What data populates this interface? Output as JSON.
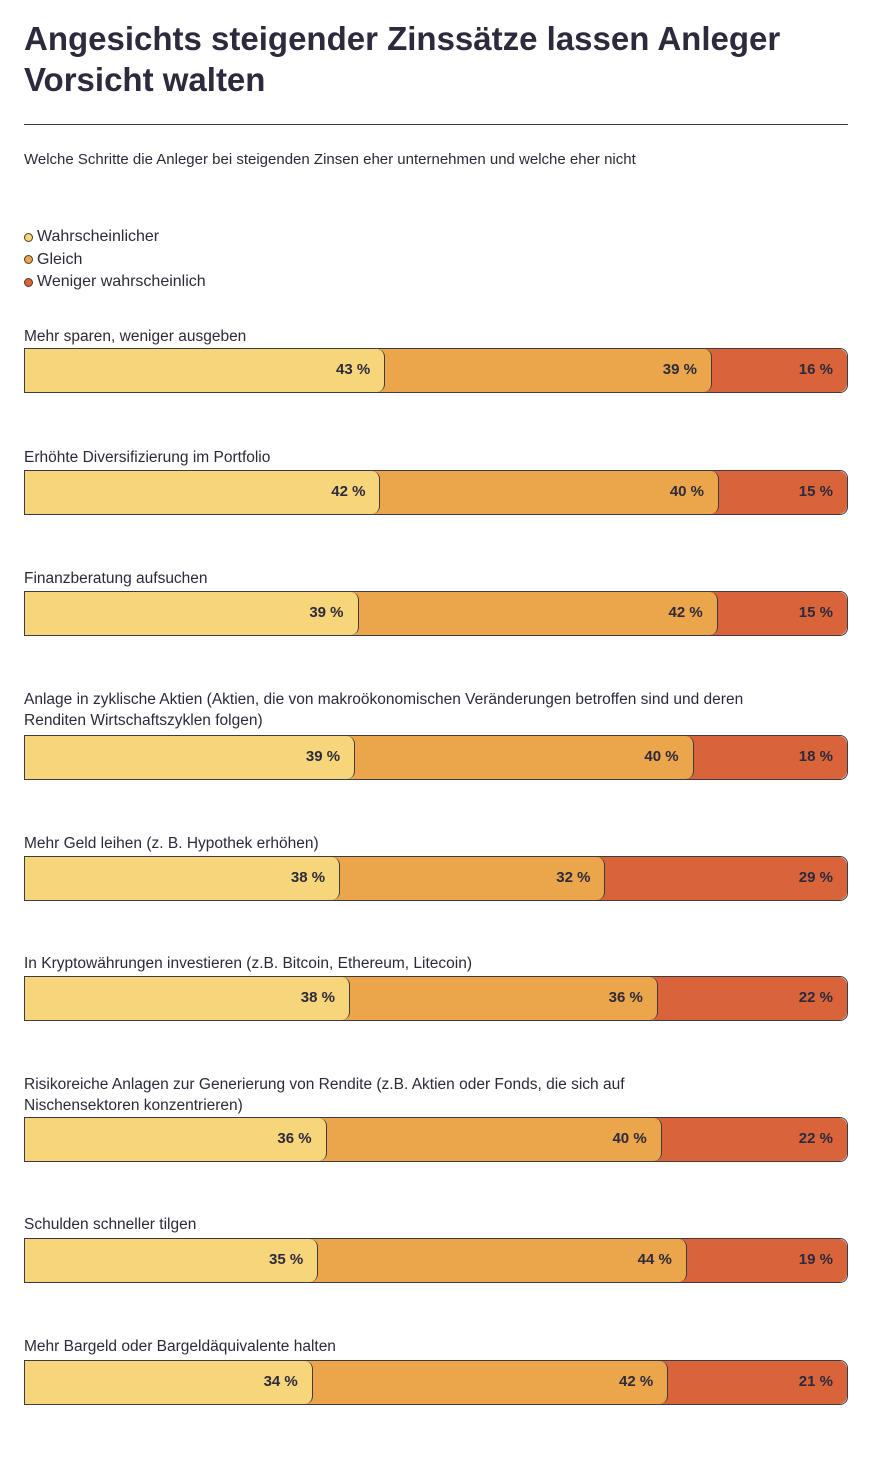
{
  "title": "Angesichts steigender Zinssätze lassen Anleger Vorsicht walten",
  "subtitle": "Welche Schritte die Anleger bei steigenden Zinsen eher unternehmen und welche eher nicht",
  "chart_data": {
    "type": "bar",
    "orientation": "horizontal",
    "stacked": true,
    "legend": [
      {
        "name": "Wahrscheinlicher",
        "color": "#f7d57a"
      },
      {
        "name": "Gleich",
        "color": "#eba54a"
      },
      {
        "name": "Weniger wahrscheinlich",
        "color": "#d9643a"
      }
    ],
    "categories": [
      "Mehr sparen, weniger ausgeben",
      "Erhöhte Diversifizierung im Portfolio",
      "Finanzberatung aufsuchen",
      "Anlage in zyklische Aktien (Aktien, die von makroökonomischen Veränderungen betroffen sind und deren Renditen Wirtschaftszyklen folgen)",
      "Mehr Geld leihen (z. B. Hypothek erhöhen)",
      "In Kryptowährungen investieren (z.B. Bitcoin, Ethereum, Litecoin)",
      "Risikoreiche Anlagen zur Generierung von Rendite (z.B. Aktien oder Fonds, die sich auf Nischensektoren konzentrieren)",
      "Schulden schneller tilgen",
      "Mehr Bargeld oder Bargeldäquivalente halten"
    ],
    "series": [
      {
        "name": "Wahrscheinlicher",
        "values": [
          43,
          42,
          39,
          39,
          38,
          38,
          36,
          35,
          34
        ],
        "labels": [
          "43 %",
          "42 %",
          "39 %",
          "39 %",
          "38 %",
          "38 %",
          "36 %",
          "35 %",
          "34 %"
        ]
      },
      {
        "name": "Gleich",
        "values": [
          39,
          40,
          42,
          40,
          32,
          36,
          40,
          44,
          42
        ],
        "labels": [
          "39 %",
          "40 %",
          "42 %",
          "40 %",
          "32 %",
          "36 %",
          "40 %",
          "44 %",
          "42 %"
        ]
      },
      {
        "name": "Weniger wahrscheinlich",
        "values": [
          16,
          15,
          15,
          18,
          29,
          22,
          22,
          19,
          21
        ],
        "labels": [
          "16 %",
          "15 %",
          "15 %",
          "18 %",
          "29 %",
          "22 %",
          "22 %",
          "19 %",
          "21 %"
        ]
      }
    ],
    "xlim": [
      0,
      100
    ]
  }
}
